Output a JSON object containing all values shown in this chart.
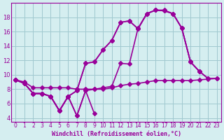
{
  "x": [
    0,
    1,
    2,
    3,
    4,
    5,
    6,
    7,
    8,
    9,
    10,
    11,
    12,
    13,
    14,
    15,
    16,
    17,
    18,
    19,
    20,
    21,
    22,
    23
  ],
  "line1": [
    9.3,
    8.8,
    7.4,
    7.4,
    7.0,
    5.0,
    7.0,
    4.3,
    7.8,
    4.6,
    null,
    null,
    null,
    null,
    null,
    null,
    null,
    null,
    null,
    null,
    null,
    null,
    null,
    null
  ],
  "line2": [
    9.3,
    8.8,
    7.4,
    7.4,
    7.0,
    5.0,
    7.0,
    4.3,
    7.8,
    8.0,
    8.2,
    8.4,
    11.6,
    11.5,
    16.5,
    18.5,
    19.0,
    19.0,
    18.5,
    16.5,
    11.8,
    10.5,
    null,
    null
  ],
  "line3": [
    9.3,
    8.8,
    7.4,
    7.4,
    7.0,
    5.0,
    7.0,
    7.8,
    11.6,
    11.8,
    13.5,
    14.8,
    17.3,
    17.5,
    16.4,
    18.5,
    19.0,
    18.9,
    18.5,
    16.5,
    11.8,
    10.5,
    9.5,
    null
  ],
  "line4": [
    9.3,
    8.8,
    7.4,
    7.4,
    7.0,
    5.0,
    7.0,
    7.8,
    11.6,
    11.8,
    13.5,
    14.8,
    17.3,
    17.5,
    16.4,
    18.5,
    19.0,
    18.9,
    18.5,
    16.5,
    11.8,
    10.5,
    9.5,
    9.5
  ],
  "line5": [
    9.3,
    9.0,
    8.2,
    8.2,
    8.2,
    8.2,
    8.2,
    8.0,
    8.0,
    8.0,
    8.0,
    8.2,
    8.5,
    8.7,
    8.8,
    9.0,
    9.2,
    9.2,
    9.2,
    9.2,
    9.2,
    9.3,
    9.4,
    9.5
  ],
  "bg_color": "#d5eef0",
  "grid_color": "#a0c8d0",
  "line_color": "#990099",
  "xlabel": "Windchill (Refroidissement éolien,°C)",
  "ylabel": "",
  "xlim": [
    -0.5,
    23.5
  ],
  "ylim": [
    3.5,
    20
  ],
  "yticks": [
    4,
    6,
    8,
    10,
    12,
    14,
    16,
    18
  ],
  "xticks": [
    0,
    1,
    2,
    3,
    4,
    5,
    6,
    7,
    8,
    9,
    10,
    11,
    12,
    13,
    14,
    15,
    16,
    17,
    18,
    19,
    20,
    21,
    22,
    23
  ],
  "marker": "D",
  "markersize": 3,
  "linewidth": 1.2
}
